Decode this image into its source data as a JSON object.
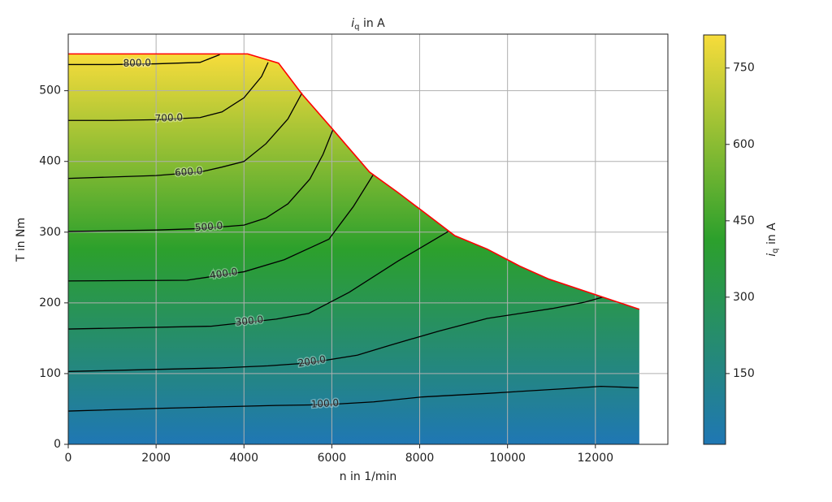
{
  "chart_data": {
    "type": "contour",
    "title_parts": [
      "i",
      "q",
      " in A"
    ],
    "xlabel": "n in 1/min",
    "ylabel": "T in Nm",
    "colorbar_label_parts": [
      "i",
      "q",
      " in A"
    ],
    "xlim": [
      0,
      13650
    ],
    "ylim": [
      0,
      580
    ],
    "xticks": [
      0,
      2000,
      4000,
      6000,
      8000,
      10000,
      12000
    ],
    "yticks": [
      0,
      100,
      200,
      300,
      400,
      500
    ],
    "grid": true,
    "clim": [
      11,
      815
    ],
    "cticks": [
      150,
      300,
      450,
      600,
      750
    ],
    "colormap": [
      "#1f77b4",
      "#2ca02c",
      "#f7dc3b"
    ],
    "boundary": {
      "color": "#ff0000",
      "n": [
        0,
        4085,
        4787,
        5323,
        6026,
        6858,
        7505,
        8059,
        8799,
        9538,
        10277,
        10924,
        12126,
        13000
      ],
      "T": [
        552,
        552,
        539,
        495,
        445,
        385,
        356,
        330,
        295,
        276,
        252,
        234,
        209,
        191
      ]
    },
    "contours": [
      {
        "level": {
          "value": 800,
          "label": "800.0"
        },
        "n": [
          0,
          1000,
          2000,
          3000,
          3450
        ],
        "T": [
          537,
          537,
          538,
          540,
          551
        ]
      },
      {
        "level": {
          "value": 700,
          "label": "700.0"
        },
        "n": [
          0,
          1000,
          2000,
          3000,
          3500,
          4000,
          4400,
          4550
        ],
        "T": [
          458,
          458,
          459,
          462,
          470,
          490,
          520,
          540
        ]
      },
      {
        "level": {
          "value": 600,
          "label": "600.0"
        },
        "n": [
          0,
          1000,
          2000,
          3000,
          3500,
          4000,
          4500,
          5000,
          5323
        ],
        "T": [
          376,
          378,
          380,
          385,
          392,
          400,
          425,
          460,
          497
        ]
      },
      {
        "level": {
          "value": 500,
          "label": "500.0"
        },
        "n": [
          0,
          2000,
          3000,
          4000,
          4500,
          5000,
          5500,
          5800,
          6026
        ],
        "T": [
          301,
          303,
          305,
          310,
          320,
          340,
          375,
          410,
          445
        ]
      },
      {
        "level": {
          "value": 400,
          "label": "400.0"
        },
        "n": [
          0,
          2700,
          4000,
          4917,
          5933,
          6488,
          6950
        ],
        "T": [
          231,
          232,
          244,
          261,
          290,
          336,
          382
        ]
      },
      {
        "level": {
          "value": 300,
          "label": "300.0"
        },
        "n": [
          0,
          3253,
          4732,
          5471,
          6396,
          7505,
          8244,
          8651
        ],
        "T": [
          163,
          167,
          177,
          185,
          215,
          259,
          286,
          301
        ]
      },
      {
        "level": {
          "value": 200,
          "label": "200.0"
        },
        "n": [
          0,
          3438,
          4547,
          5471,
          6580,
          7320,
          8429,
          9538,
          11017,
          11756,
          12163
        ],
        "T": [
          103,
          108,
          111,
          115,
          126,
          140,
          160,
          178,
          192,
          201,
          208
        ]
      },
      {
        "level": {
          "value": 100,
          "label": "100.0"
        },
        "n": [
          0,
          2144,
          4732,
          5841,
          6950,
          8059,
          9538,
          11386,
          12126,
          12976
        ],
        "T": [
          47,
          51,
          55,
          56,
          60,
          67,
          72,
          79,
          82,
          80
        ]
      }
    ]
  }
}
